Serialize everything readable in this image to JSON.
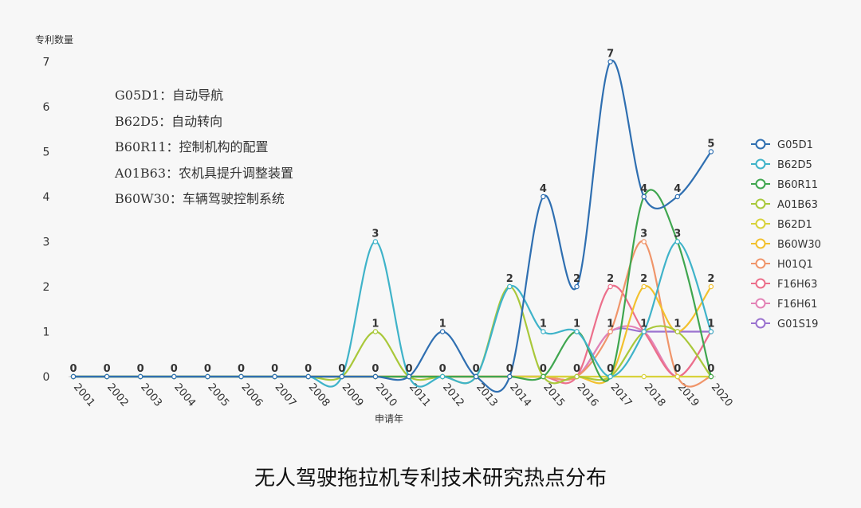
{
  "chart_data": {
    "type": "line",
    "title": "",
    "ylabel": "专利数量",
    "xlabel": "申请年",
    "ylim": [
      0,
      7
    ],
    "yticks": [
      "0",
      "1",
      "2",
      "3",
      "4",
      "5",
      "6",
      "7"
    ],
    "grid": false,
    "legend_position": "right",
    "categories": [
      "2001",
      "2002",
      "2003",
      "2004",
      "2005",
      "2006",
      "2007",
      "2008",
      "2009",
      "2010",
      "2011",
      "2012",
      "2013",
      "2014",
      "2015",
      "2016",
      "2017",
      "2018",
      "2019",
      "2020"
    ],
    "series": [
      {
        "name": "G05D1",
        "color": "#2f6fb1",
        "values": [
          0,
          0,
          0,
          0,
          0,
          0,
          0,
          0,
          0,
          0,
          0,
          1,
          0,
          0,
          4,
          2,
          7,
          4,
          4,
          5
        ]
      },
      {
        "name": "B62D5",
        "color": "#3fb3c9",
        "values": [
          0,
          0,
          0,
          0,
          0,
          0,
          0,
          0,
          0,
          3,
          0,
          0,
          0,
          2,
          1,
          1,
          0,
          1,
          3,
          1
        ]
      },
      {
        "name": "B60R11",
        "color": "#3fa64f",
        "values": [
          0,
          0,
          0,
          0,
          0,
          0,
          0,
          0,
          0,
          0,
          0,
          0,
          0,
          0,
          0,
          1,
          0,
          4,
          3,
          0
        ]
      },
      {
        "name": "A01B63",
        "color": "#a9c83a",
        "values": [
          0,
          0,
          0,
          0,
          0,
          0,
          0,
          0,
          0,
          1,
          0,
          0,
          0,
          2,
          0,
          0,
          0,
          1,
          1,
          0
        ]
      },
      {
        "name": "B62D1",
        "color": "#d8d23a",
        "values": [
          0,
          0,
          0,
          0,
          0,
          0,
          0,
          0,
          0,
          0,
          0,
          0,
          0,
          0,
          0,
          0,
          0,
          0,
          0,
          0
        ]
      },
      {
        "name": "B60W30",
        "color": "#f2c12e",
        "values": [
          0,
          0,
          0,
          0,
          0,
          0,
          0,
          0,
          0,
          0,
          0,
          0,
          0,
          0,
          0,
          0,
          0,
          2,
          1,
          2
        ]
      },
      {
        "name": "H01Q1",
        "color": "#f0956a",
        "values": [
          0,
          0,
          0,
          0,
          0,
          0,
          0,
          0,
          0,
          0,
          0,
          0,
          0,
          0,
          0,
          0,
          1,
          3,
          0,
          0
        ]
      },
      {
        "name": "F16H63",
        "color": "#ec6f8b",
        "values": [
          0,
          0,
          0,
          0,
          0,
          0,
          0,
          0,
          0,
          0,
          0,
          0,
          0,
          0,
          0,
          0,
          2,
          1,
          0,
          1
        ]
      },
      {
        "name": "F16H61",
        "color": "#e383b6",
        "values": [
          0,
          0,
          0,
          0,
          0,
          0,
          0,
          0,
          0,
          0,
          0,
          0,
          0,
          0,
          0,
          0,
          1,
          1,
          0,
          1
        ]
      },
      {
        "name": "G01S19",
        "color": "#9a72cf",
        "values": [
          0,
          0,
          0,
          0,
          0,
          0,
          0,
          0,
          0,
          0,
          0,
          0,
          0,
          0,
          0,
          0,
          1,
          1,
          1,
          1
        ]
      }
    ],
    "data_labels": [
      {
        "x": "2001",
        "y": 0,
        "text": "0"
      },
      {
        "x": "2002",
        "y": 0,
        "text": "0"
      },
      {
        "x": "2003",
        "y": 0,
        "text": "0"
      },
      {
        "x": "2004",
        "y": 0,
        "text": "0"
      },
      {
        "x": "2005",
        "y": 0,
        "text": "0"
      },
      {
        "x": "2006",
        "y": 0,
        "text": "0"
      },
      {
        "x": "2007",
        "y": 0,
        "text": "0"
      },
      {
        "x": "2008",
        "y": 0,
        "text": "0"
      },
      {
        "x": "2009",
        "y": 0,
        "text": "0"
      },
      {
        "x": "2010",
        "y": 0,
        "text": "0"
      },
      {
        "x": "2010",
        "y": 1,
        "text": "1"
      },
      {
        "x": "2010",
        "y": 3,
        "text": "3"
      },
      {
        "x": "2011",
        "y": 0,
        "text": "0"
      },
      {
        "x": "2012",
        "y": 0,
        "text": "0"
      },
      {
        "x": "2012",
        "y": 1,
        "text": "1"
      },
      {
        "x": "2013",
        "y": 0,
        "text": "0"
      },
      {
        "x": "2014",
        "y": 0,
        "text": "0"
      },
      {
        "x": "2014",
        "y": 2,
        "text": "2"
      },
      {
        "x": "2015",
        "y": 0,
        "text": "0"
      },
      {
        "x": "2015",
        "y": 1,
        "text": "1"
      },
      {
        "x": "2015",
        "y": 4,
        "text": "4"
      },
      {
        "x": "2016",
        "y": 0,
        "text": "0"
      },
      {
        "x": "2016",
        "y": 1,
        "text": "1"
      },
      {
        "x": "2016",
        "y": 2,
        "text": "2"
      },
      {
        "x": "2017",
        "y": 0,
        "text": "0"
      },
      {
        "x": "2017",
        "y": 1,
        "text": "1"
      },
      {
        "x": "2017",
        "y": 2,
        "text": "2"
      },
      {
        "x": "2017",
        "y": 7,
        "text": "7"
      },
      {
        "x": "2018",
        "y": 1,
        "text": "1"
      },
      {
        "x": "2018",
        "y": 2,
        "text": "2"
      },
      {
        "x": "2018",
        "y": 3,
        "text": "3"
      },
      {
        "x": "2018",
        "y": 4,
        "text": "4"
      },
      {
        "x": "2019",
        "y": 0,
        "text": "0"
      },
      {
        "x": "2019",
        "y": 1,
        "text": "1"
      },
      {
        "x": "2019",
        "y": 3,
        "text": "3"
      },
      {
        "x": "2019",
        "y": 4,
        "text": "4"
      },
      {
        "x": "2020",
        "y": 0,
        "text": "0"
      },
      {
        "x": "2020",
        "y": 1,
        "text": "1"
      },
      {
        "x": "2020",
        "y": 2,
        "text": "2"
      },
      {
        "x": "2020",
        "y": 5,
        "text": "5"
      }
    ],
    "annotations": [
      "G05D1：自动导航",
      "B62D5：自动转向",
      "B60R11：控制机构的配置",
      "A01B63：农机具提升调整装置",
      "B60W30：车辆驾驶控制系统"
    ]
  },
  "caption": "无人驾驶拖拉机专利技术研究热点分布"
}
